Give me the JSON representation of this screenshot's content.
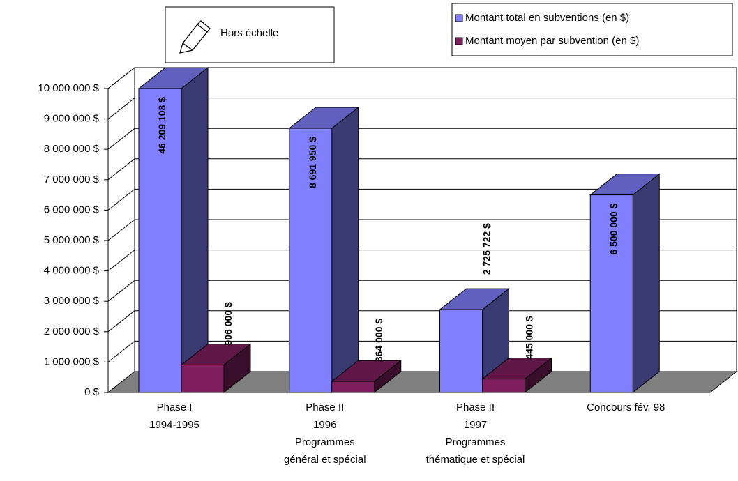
{
  "chart_data": {
    "type": "bar3d",
    "annotation": "Hors échelle",
    "categories": [
      [
        "Phase I",
        "1994-1995"
      ],
      [
        "Phase II",
        "1996",
        "Programmes",
        "général et spécial"
      ],
      [
        "Phase II",
        "1997",
        "Programmes",
        "thématique et spécial"
      ],
      [
        "Concours fév. 98"
      ]
    ],
    "series": [
      {
        "name": "Montant total en subventions (en $)",
        "color": "#8080ff",
        "values": [
          46209108,
          8691950,
          2725722,
          6500000
        ],
        "value_labels": [
          "46 209 108 $",
          "8 691 950 $",
          "2 725 722 $",
          "6 500 000 $"
        ]
      },
      {
        "name": "Montant moyen par subvention (en $)",
        "color": "#7f1f5f",
        "values": [
          906000,
          364000,
          445000,
          null
        ],
        "value_labels": [
          "906 000 $",
          "364 000 $",
          "445 000 $",
          null
        ]
      }
    ],
    "ylim": [
      0,
      10000000
    ],
    "yticks": [
      {
        "value": 0,
        "label": "0 $"
      },
      {
        "value": 1000000,
        "label": "1 000 000 $"
      },
      {
        "value": 2000000,
        "label": "2 000 000 $"
      },
      {
        "value": 3000000,
        "label": "3 000 000 $"
      },
      {
        "value": 4000000,
        "label": "4 000 000 $"
      },
      {
        "value": 5000000,
        "label": "5 000 000 $"
      },
      {
        "value": 6000000,
        "label": "6 000 000 $"
      },
      {
        "value": 7000000,
        "label": "7 000 000 $"
      },
      {
        "value": 8000000,
        "label": "8 000 000 $"
      },
      {
        "value": 9000000,
        "label": "9 000 000 $"
      },
      {
        "value": 10000000,
        "label": "10 000 000 $"
      }
    ],
    "grid": true,
    "legend": "top-right"
  }
}
